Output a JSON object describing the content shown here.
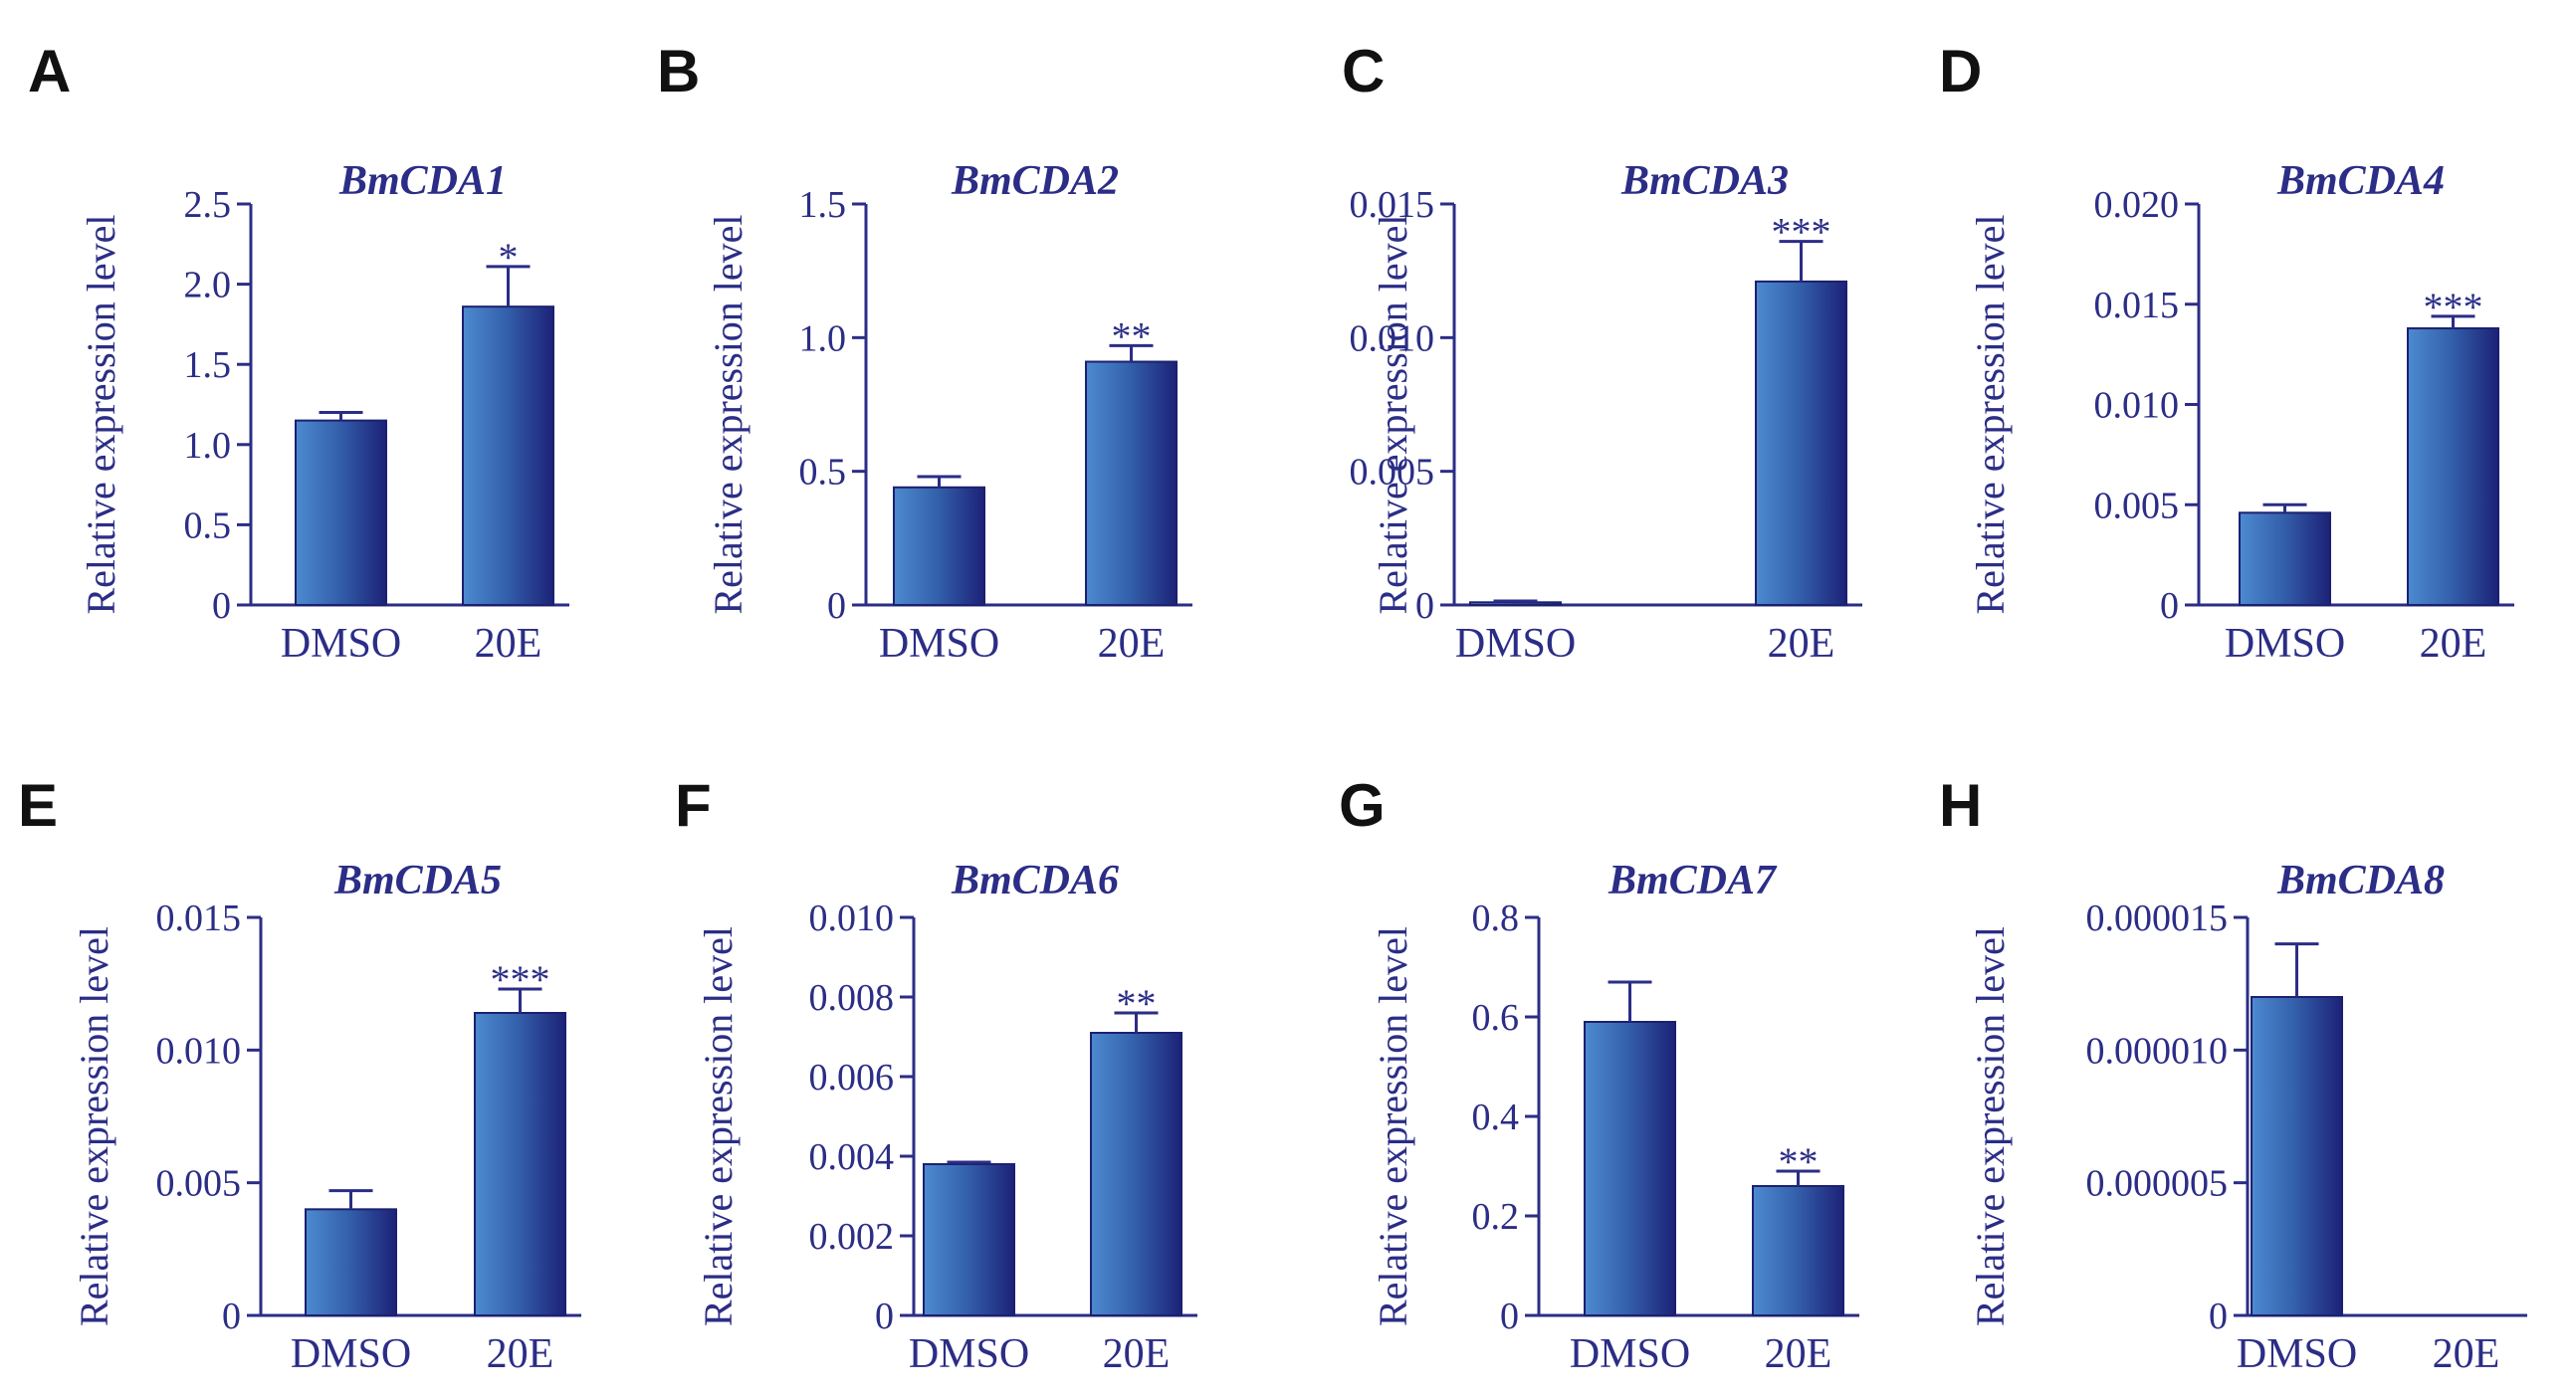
{
  "chart_data": [
    {
      "type": "bar",
      "panel": "A",
      "title": "BmCDA1",
      "ylabel": "Relative expression level",
      "categories": [
        "DMSO",
        "20E"
      ],
      "values": [
        1.15,
        1.86
      ],
      "errors": [
        0.05,
        0.25
      ],
      "significance": [
        "",
        "*"
      ],
      "ylim": [
        0,
        2.5
      ],
      "yticks": [
        0,
        0.5,
        1.0,
        1.5,
        2.0,
        2.5
      ],
      "ytick_labels": [
        "0",
        "0.5",
        "1.0",
        "1.5",
        "2.0",
        "2.5"
      ]
    },
    {
      "type": "bar",
      "panel": "B",
      "title": "BmCDA2",
      "ylabel": "Relative expression level",
      "categories": [
        "DMSO",
        "20E"
      ],
      "values": [
        0.44,
        0.91
      ],
      "errors": [
        0.04,
        0.06
      ],
      "significance": [
        "",
        "**"
      ],
      "ylim": [
        0,
        1.5
      ],
      "yticks": [
        0,
        0.5,
        1.0,
        1.5
      ],
      "ytick_labels": [
        "0",
        "0.5",
        "1.0",
        "1.5"
      ]
    },
    {
      "type": "bar",
      "panel": "C",
      "title": "BmCDA3",
      "ylabel": "Relative expression level",
      "categories": [
        "DMSO",
        "20E"
      ],
      "values": [
        0.0001,
        0.0121
      ],
      "errors": [
        5e-05,
        0.0015
      ],
      "significance": [
        "",
        "***"
      ],
      "ylim": [
        0,
        0.015
      ],
      "yticks": [
        0,
        0.005,
        0.01,
        0.015
      ],
      "ytick_labels": [
        "0",
        "0.005",
        "0.010",
        "0.015"
      ]
    },
    {
      "type": "bar",
      "panel": "D",
      "title": "BmCDA4",
      "ylabel": "Relative expression level",
      "categories": [
        "DMSO",
        "20E"
      ],
      "values": [
        0.0046,
        0.0138
      ],
      "errors": [
        0.0004,
        0.0006
      ],
      "significance": [
        "",
        "***"
      ],
      "ylim": [
        0,
        0.02
      ],
      "yticks": [
        0,
        0.005,
        0.01,
        0.015,
        0.02
      ],
      "ytick_labels": [
        "0",
        "0.005",
        "0.010",
        "0.015",
        "0.020"
      ]
    },
    {
      "type": "bar",
      "panel": "E",
      "title": "BmCDA5",
      "ylabel": "Relative expression level",
      "categories": [
        "DMSO",
        "20E"
      ],
      "values": [
        0.004,
        0.0114
      ],
      "errors": [
        0.0007,
        0.0009
      ],
      "significance": [
        "",
        "***"
      ],
      "ylim": [
        0,
        0.015
      ],
      "yticks": [
        0,
        0.005,
        0.01,
        0.015
      ],
      "ytick_labels": [
        "0",
        "0.005",
        "0.010",
        "0.015"
      ]
    },
    {
      "type": "bar",
      "panel": "F",
      "title": "BmCDA6",
      "ylabel": "Relative expression level",
      "categories": [
        "DMSO",
        "20E"
      ],
      "values": [
        0.0038,
        0.0071
      ],
      "errors": [
        5e-05,
        0.0005
      ],
      "significance": [
        "",
        "**"
      ],
      "ylim": [
        0,
        0.01
      ],
      "yticks": [
        0,
        0.002,
        0.004,
        0.006,
        0.008,
        0.01
      ],
      "ytick_labels": [
        "0",
        "0.002",
        "0.004",
        "0.006",
        "0.008",
        "0.010"
      ]
    },
    {
      "type": "bar",
      "panel": "G",
      "title": "BmCDA7",
      "ylabel": "Relative expression level",
      "categories": [
        "DMSO",
        "20E"
      ],
      "values": [
        0.59,
        0.26
      ],
      "errors": [
        0.08,
        0.03
      ],
      "significance": [
        "",
        "**"
      ],
      "ylim": [
        0,
        0.8
      ],
      "yticks": [
        0,
        0.2,
        0.4,
        0.6,
        0.8
      ],
      "ytick_labels": [
        "0",
        "0.2",
        "0.4",
        "0.6",
        "0.8"
      ]
    },
    {
      "type": "bar",
      "panel": "H",
      "title": "BmCDA8",
      "ylabel": "Relative expression level",
      "categories": [
        "DMSO",
        "20E"
      ],
      "values": [
        1.2e-05,
        0
      ],
      "errors": [
        2e-06,
        0
      ],
      "significance": [
        "",
        ""
      ],
      "ylim": [
        0,
        1.5e-05
      ],
      "yticks": [
        0,
        5e-06,
        1e-05,
        1.5e-05
      ],
      "ytick_labels": [
        "0",
        "0.000005",
        "0.000010",
        "0.000015"
      ]
    }
  ]
}
